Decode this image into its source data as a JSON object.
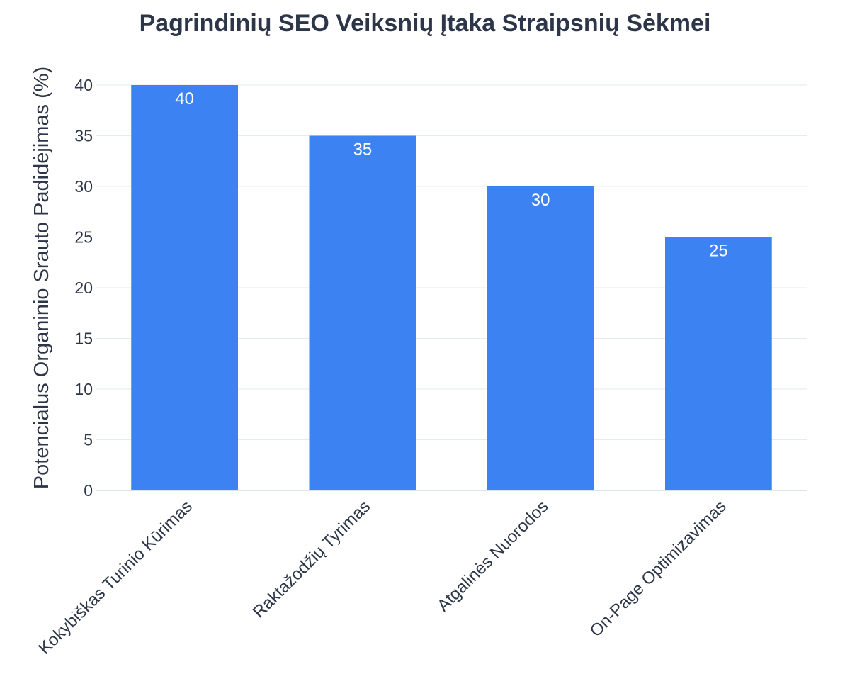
{
  "chart_data": {
    "type": "bar",
    "title": "Pagrindinių SEO Veiksnių Įtaka Straipsnių Sėkmei",
    "xlabel": "",
    "ylabel": "Potencialus Organinio Srauto Padidėjimas (%)",
    "categories": [
      "Kokybiškas Turinio Kūrimas",
      "Raktažodžių Tyrimas",
      "Atgalinės Nuorodos",
      "On-Page Optimizavimas"
    ],
    "values": [
      40,
      35,
      30,
      25
    ],
    "ylim": [
      0,
      40
    ],
    "yticks": [
      0,
      5,
      10,
      15,
      20,
      25,
      30,
      35,
      40
    ],
    "grid": true,
    "data_labels": "inside-top",
    "bar_color": "#3d82f3",
    "text_color": "#2d3648"
  }
}
